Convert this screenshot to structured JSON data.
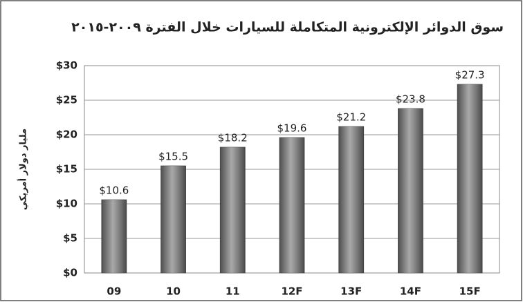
{
  "chart_data": {
    "type": "bar",
    "title": "سوق الدوائر الإلكترونية المتكاملة للسيارات خلال الفترة ٢٠٠٩-٢٠١٥",
    "y_label": "مليار دولار أمريكي",
    "categories": [
      "09",
      "10",
      "11",
      "12F",
      "13F",
      "14F",
      "15F"
    ],
    "values": [
      10.6,
      15.5,
      18.2,
      19.6,
      21.2,
      23.8,
      27.3
    ],
    "value_labels": [
      "$10.6",
      "$15.5",
      "$18.2",
      "$19.6",
      "$21.2",
      "$23.8",
      "$27.3"
    ],
    "color": "#7a7a7a",
    "ylim": [
      0,
      30
    ],
    "yticks": [
      {
        "value": 0,
        "label": "$0"
      },
      {
        "value": 5,
        "label": "$5"
      },
      {
        "value": 10,
        "label": "$10"
      },
      {
        "value": 15,
        "label": "$15"
      },
      {
        "value": 20,
        "label": "$20"
      },
      {
        "value": 25,
        "label": "$25"
      },
      {
        "value": 30,
        "label": "$30"
      }
    ],
    "grid": true
  }
}
